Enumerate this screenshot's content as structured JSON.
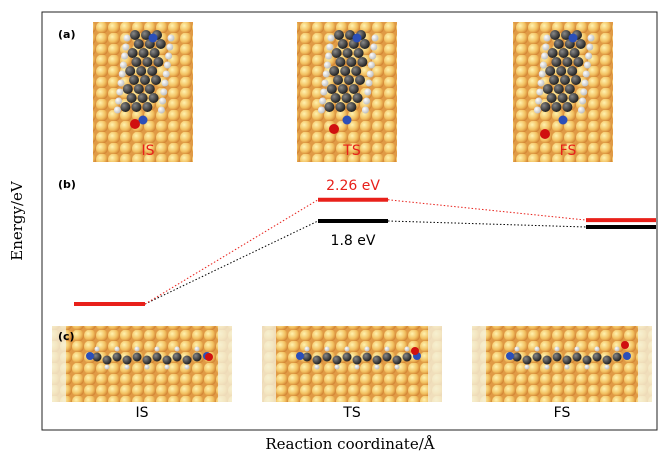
{
  "chart_data": {
    "type": "energy-profile",
    "xlabel": "Reaction coordinate/Å",
    "ylabel": "Energy/eV",
    "panels": [
      "(a)",
      "(b)",
      "(c)"
    ],
    "categories": [
      "IS",
      "TS",
      "FS"
    ],
    "series": [
      {
        "color": "#e8201a",
        "values": [
          0,
          2.26,
          1.82
        ],
        "value_labels": [
          null,
          "2.26 eV",
          null
        ]
      },
      {
        "color": "#000000",
        "values": [
          0,
          1.8,
          1.67
        ],
        "value_labels": [
          null,
          "1.8 eV",
          null
        ]
      }
    ],
    "ylim": [
      -2.73,
      6.33
    ]
  }
}
